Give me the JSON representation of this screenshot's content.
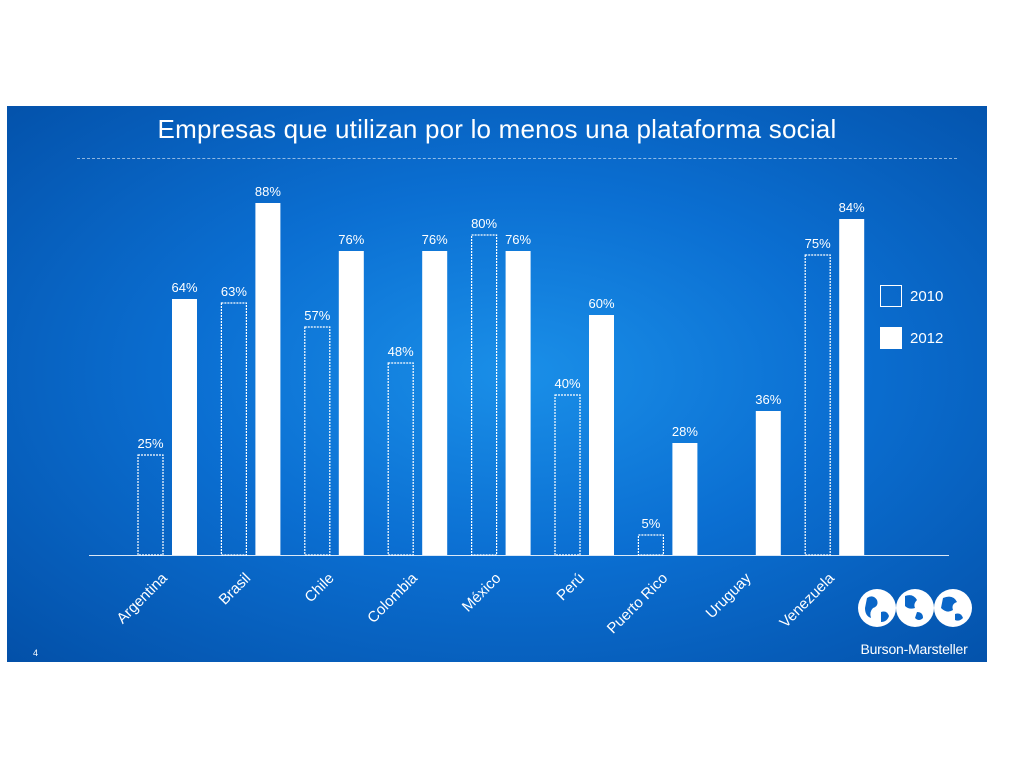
{
  "slide": {
    "title": "Empresas que utilizan por lo menos una plataforma social",
    "number": "4",
    "brand": "Burson-Marsteller"
  },
  "legend": {
    "items": [
      {
        "label": "2010",
        "style": "outline"
      },
      {
        "label": "2012",
        "style": "filled"
      }
    ]
  },
  "colors": {
    "background_center": "#1a8fe8",
    "background_edge": "#0350a8",
    "bar": "#ffffff"
  },
  "chart_data": {
    "type": "bar",
    "title": "Empresas que utilizan por lo menos una plataforma social",
    "categories": [
      "Argentina",
      "Brasil",
      "Chile",
      "Colombia",
      "México",
      "Perú",
      "Puerto Rico",
      "Uruguay",
      "Venezuela"
    ],
    "series": [
      {
        "name": "2010",
        "style": "outline",
        "values": [
          25,
          63,
          57,
          48,
          80,
          40,
          5,
          null,
          75
        ],
        "labels": [
          "25%",
          "63%",
          "57%",
          "48%",
          "80%",
          "40%",
          "5%",
          null,
          "75%"
        ]
      },
      {
        "name": "2012",
        "style": "filled",
        "values": [
          64,
          88,
          76,
          76,
          76,
          60,
          28,
          36,
          84
        ],
        "labels": [
          "64%",
          "88%",
          "76%",
          "76%",
          "76%",
          "60%",
          "28%",
          "36%",
          "84%"
        ]
      }
    ],
    "xlabel": "",
    "ylabel": "",
    "ylim": [
      0,
      100
    ],
    "grid": false,
    "legend_position": "right"
  }
}
